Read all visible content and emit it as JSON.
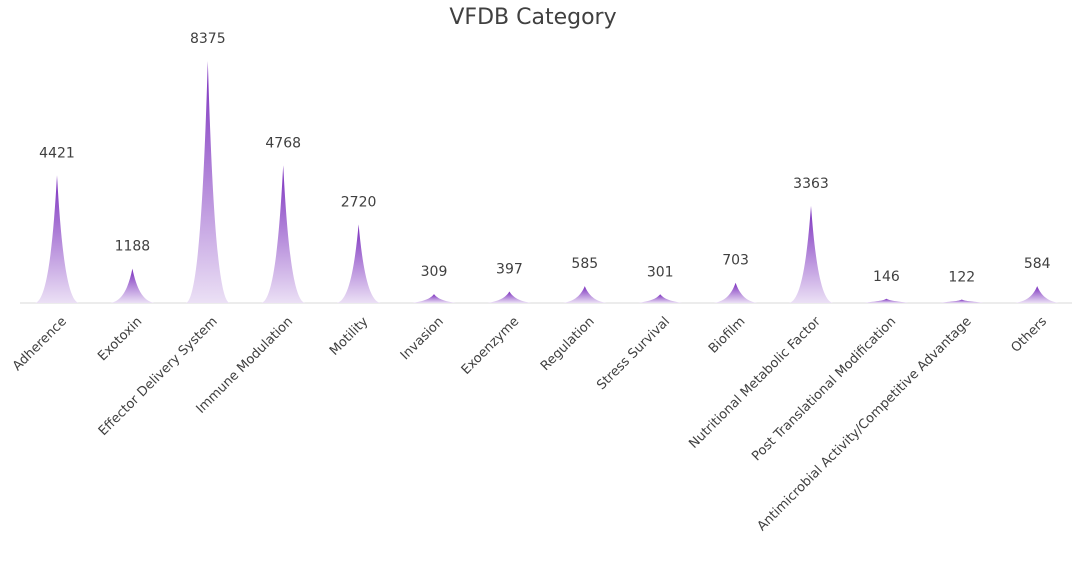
{
  "chart_data": {
    "type": "bar",
    "title": "VFDB Category",
    "xlabel": "",
    "ylabel": "",
    "categories": [
      "Adherence",
      "Exotoxin",
      "Effector Delivery System",
      "Immune Modulation",
      "Motility",
      "Invasion",
      "Exoenzyme",
      "Regulation",
      "Stress Survival",
      "Biofilm",
      "Nutritional Metabolic Factor",
      "Post Translational Modification",
      "Antimicrobial Activity/Competitive Advantage",
      "Others"
    ],
    "values": [
      4421,
      1188,
      8375,
      4768,
      2720,
      309,
      397,
      585,
      301,
      703,
      3363,
      146,
      122,
      584
    ],
    "ylim": [
      0,
      9000
    ],
    "grid": false,
    "legend": "none",
    "mark_shape": "cone",
    "colors": {
      "fill_top": "#7b2fbe",
      "fill_bottom": "#ebe0f5",
      "axis": "#d9d9d9",
      "text": "#404040"
    }
  }
}
